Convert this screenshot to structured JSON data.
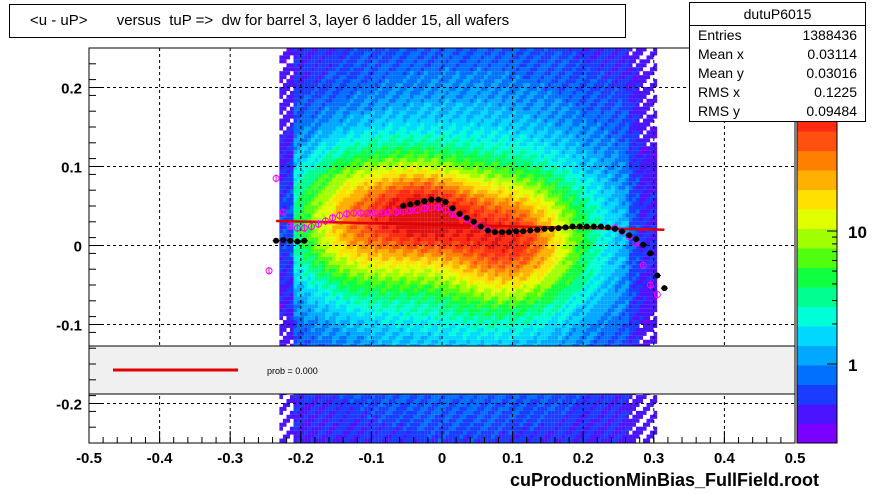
{
  "title": "<u - uP>       versus  tuP =>  dw for barrel 3, layer 6 ladder 15, all wafers",
  "footer": "cuProductionMinBias_FullField.root",
  "stats": {
    "name": "dutuP6015",
    "rows": [
      {
        "label": "Entries",
        "value": "1388436"
      },
      {
        "label": "Mean x",
        "value": "0.03114"
      },
      {
        "label": "Mean y",
        "value": "0.03016"
      },
      {
        "label": "RMS x",
        "value": "0.1225"
      },
      {
        "label": "RMS y",
        "value": "0.09484"
      }
    ]
  },
  "legend": {
    "prob_text": "prob = 0.000"
  },
  "colors": {
    "fit_line": "#e00000",
    "profile_black": "#000000",
    "profile_magenta": "#ff00ff"
  },
  "chart_data": {
    "type": "heatmap",
    "xlim": [
      -0.5,
      0.5
    ],
    "ylim": [
      -0.25,
      0.25
    ],
    "x_ticks": [
      "-0.5",
      "-0.4",
      "-0.3",
      "-0.2",
      "-0.1",
      "0",
      "0.1",
      "0.2",
      "0.3",
      "0.4",
      "0.5"
    ],
    "y_ticks": [
      "-0.2",
      "-0.1",
      "0",
      "0.1",
      "0.2"
    ],
    "colorbar_ticks": [
      "1",
      "10"
    ],
    "colorbar_scale": "log",
    "grid": true,
    "profile_black": [
      {
        "x": -0.235,
        "y": 0.006
      },
      {
        "x": -0.225,
        "y": 0.007
      },
      {
        "x": -0.215,
        "y": 0.006
      },
      {
        "x": -0.205,
        "y": 0.005
      },
      {
        "x": -0.195,
        "y": 0.006
      },
      {
        "x": -0.055,
        "y": 0.05
      },
      {
        "x": -0.045,
        "y": 0.052
      },
      {
        "x": -0.035,
        "y": 0.054
      },
      {
        "x": -0.025,
        "y": 0.056
      },
      {
        "x": -0.015,
        "y": 0.058
      },
      {
        "x": -0.005,
        "y": 0.058
      },
      {
        "x": 0.005,
        "y": 0.055
      },
      {
        "x": 0.015,
        "y": 0.047
      },
      {
        "x": 0.025,
        "y": 0.04
      },
      {
        "x": 0.035,
        "y": 0.035
      },
      {
        "x": 0.045,
        "y": 0.03
      },
      {
        "x": 0.055,
        "y": 0.024
      },
      {
        "x": 0.065,
        "y": 0.019
      },
      {
        "x": 0.075,
        "y": 0.017
      },
      {
        "x": 0.085,
        "y": 0.017
      },
      {
        "x": 0.095,
        "y": 0.017
      },
      {
        "x": 0.105,
        "y": 0.018
      },
      {
        "x": 0.115,
        "y": 0.018
      },
      {
        "x": 0.125,
        "y": 0.019
      },
      {
        "x": 0.135,
        "y": 0.02
      },
      {
        "x": 0.145,
        "y": 0.021
      },
      {
        "x": 0.155,
        "y": 0.021
      },
      {
        "x": 0.165,
        "y": 0.022
      },
      {
        "x": 0.175,
        "y": 0.023
      },
      {
        "x": 0.185,
        "y": 0.024
      },
      {
        "x": 0.195,
        "y": 0.024
      },
      {
        "x": 0.205,
        "y": 0.024
      },
      {
        "x": 0.215,
        "y": 0.024
      },
      {
        "x": 0.225,
        "y": 0.024
      },
      {
        "x": 0.235,
        "y": 0.023
      },
      {
        "x": 0.245,
        "y": 0.021
      },
      {
        "x": 0.255,
        "y": 0.018
      },
      {
        "x": 0.265,
        "y": 0.013
      },
      {
        "x": 0.275,
        "y": 0.008
      },
      {
        "x": 0.285,
        "y": 0.001
      },
      {
        "x": 0.295,
        "y": -0.01
      },
      {
        "x": 0.305,
        "y": -0.038
      },
      {
        "x": 0.315,
        "y": -0.054
      }
    ],
    "profile_magenta": [
      {
        "x": -0.245,
        "y": -0.032
      },
      {
        "x": -0.235,
        "y": 0.085
      },
      {
        "x": -0.225,
        "y": 0.042
      },
      {
        "x": -0.215,
        "y": 0.025
      },
      {
        "x": -0.205,
        "y": 0.022
      },
      {
        "x": -0.195,
        "y": 0.022
      },
      {
        "x": -0.185,
        "y": 0.024
      },
      {
        "x": -0.175,
        "y": 0.027
      },
      {
        "x": -0.165,
        "y": 0.031
      },
      {
        "x": -0.155,
        "y": 0.035
      },
      {
        "x": -0.145,
        "y": 0.038
      },
      {
        "x": -0.135,
        "y": 0.04
      },
      {
        "x": -0.125,
        "y": 0.041
      },
      {
        "x": -0.115,
        "y": 0.041
      },
      {
        "x": -0.105,
        "y": 0.041
      },
      {
        "x": -0.095,
        "y": 0.041
      },
      {
        "x": -0.085,
        "y": 0.041
      },
      {
        "x": -0.075,
        "y": 0.042
      },
      {
        "x": -0.065,
        "y": 0.042
      },
      {
        "x": -0.055,
        "y": 0.043
      },
      {
        "x": -0.045,
        "y": 0.044
      },
      {
        "x": -0.035,
        "y": 0.045
      },
      {
        "x": -0.025,
        "y": 0.047
      },
      {
        "x": -0.015,
        "y": 0.048
      },
      {
        "x": -0.005,
        "y": 0.048
      },
      {
        "x": 0.005,
        "y": 0.045
      },
      {
        "x": 0.015,
        "y": 0.04
      },
      {
        "x": 0.025,
        "y": 0.037
      },
      {
        "x": 0.035,
        "y": 0.033
      },
      {
        "x": 0.045,
        "y": 0.028
      },
      {
        "x": 0.055,
        "y": 0.024
      },
      {
        "x": 0.065,
        "y": 0.02
      },
      {
        "x": 0.245,
        "y": 0.022
      },
      {
        "x": 0.255,
        "y": 0.018
      },
      {
        "x": 0.265,
        "y": 0.011
      },
      {
        "x": 0.275,
        "y": 0.003
      },
      {
        "x": 0.285,
        "y": -0.025
      },
      {
        "x": 0.295,
        "y": -0.05
      },
      {
        "x": 0.305,
        "y": -0.062
      }
    ],
    "fit_line": [
      {
        "x": -0.235,
        "y": 0.031
      },
      {
        "x": 0.315,
        "y": 0.02
      }
    ]
  }
}
